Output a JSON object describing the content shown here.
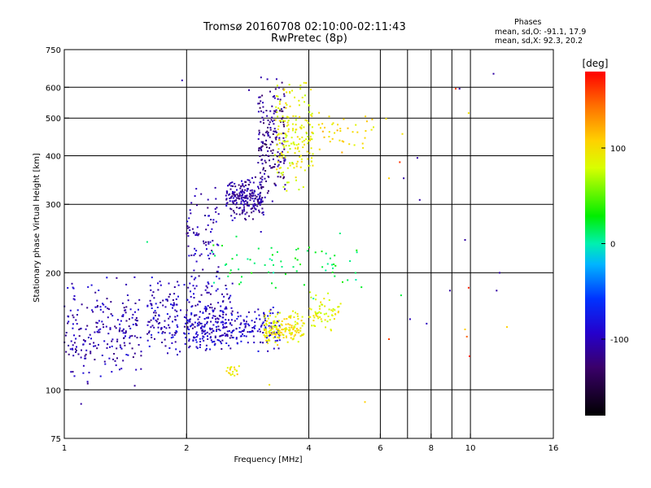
{
  "header": {
    "title_line1": "Tromsø 20160708 02:10:00-02:11:43",
    "title_line2": "RwPretec (8p)"
  },
  "phase_box": {
    "heading": "Phases",
    "line_o": "mean, sd,O: -91.1, 17.9",
    "line_x": "mean, sd,X:  92.3, 20.2"
  },
  "chart_data": {
    "type": "scatter",
    "xlabel": "Frequency [MHz]",
    "ylabel": "Stationary phase Virtual Height [km]",
    "x_scale": "log",
    "y_scale": "log",
    "xlim": [
      1,
      16
    ],
    "ylim": [
      75,
      750
    ],
    "x_ticks": [
      1,
      2,
      4,
      6,
      8,
      10,
      16
    ],
    "x_tick_labels": [
      "1",
      "2",
      "4",
      "6",
      "8",
      "10",
      "16"
    ],
    "x_gridlines": [
      2,
      4,
      6,
      7,
      8,
      9,
      10
    ],
    "y_ticks": [
      75,
      100,
      200,
      300,
      400,
      500,
      600,
      750
    ],
    "y_tick_labels": [
      "75",
      "100",
      "200",
      "300",
      "400",
      "500",
      "600",
      "750"
    ],
    "y_gridlines": [
      100,
      200,
      300,
      400,
      500,
      600
    ],
    "grid": true,
    "colorbar": {
      "label": "[deg]",
      "range": [
        -180,
        180
      ],
      "ticks": [
        100,
        0,
        -100
      ],
      "tick_labels": [
        "100",
        "0",
        "-100"
      ],
      "colormap": "rainbow (black-purple-blue-cyan-green-yellow-orange-red)"
    },
    "point_groups": [
      {
        "desc": "O-mode lower E/F1 trace",
        "x_range": [
          1.0,
          1.55
        ],
        "y_range": [
          100,
          200
        ],
        "phase": -105,
        "count": 220
      },
      {
        "desc": "O-mode F1 trace",
        "x_range": [
          1.6,
          2.6
        ],
        "y_range": [
          120,
          200
        ],
        "phase": -100,
        "count": 260
      },
      {
        "desc": "O-mode low loop",
        "x_range": [
          2.0,
          3.4
        ],
        "y_range": [
          125,
          165
        ],
        "phase": -95,
        "count": 220
      },
      {
        "desc": "O-mode F2 cluster",
        "x_range": [
          2.5,
          3.1
        ],
        "y_range": [
          270,
          360
        ],
        "phase": -110,
        "count": 220
      },
      {
        "desc": "O-mode F2 rise",
        "x_range": [
          3.0,
          3.5
        ],
        "y_range": [
          300,
          650
        ],
        "phase": -120,
        "count": 180
      },
      {
        "desc": "O-mode F vertical",
        "x_range": [
          2.0,
          2.4
        ],
        "y_range": [
          160,
          360
        ],
        "phase": -105,
        "count": 90
      },
      {
        "desc": "X-mode F2 trace",
        "x_range": [
          3.3,
          4.1
        ],
        "y_range": [
          320,
          640
        ],
        "phase": 90,
        "count": 180
      },
      {
        "desc": "X-mode low cluster",
        "x_range": [
          3.1,
          3.9
        ],
        "y_range": [
          130,
          160
        ],
        "phase": 95,
        "count": 160
      },
      {
        "desc": "X-mode tail",
        "x_range": [
          4.0,
          4.8
        ],
        "y_range": [
          140,
          180
        ],
        "phase": 90,
        "count": 60
      },
      {
        "desc": "X-mode small cluster",
        "x_range": [
          2.5,
          2.7
        ],
        "y_range": [
          107,
          116
        ],
        "phase": 100,
        "count": 18
      },
      {
        "desc": "X-mode sparse",
        "x_range": [
          4.2,
          5.8
        ],
        "y_range": [
          400,
          520
        ],
        "phase": 105,
        "count": 40
      },
      {
        "desc": "mixed scatter",
        "x_range": [
          2.2,
          5.5
        ],
        "y_range": [
          170,
          260
        ],
        "phase": 20,
        "count": 70
      }
    ],
    "isolated_points": [
      [
        1.1,
        92,
        -110
      ],
      [
        1.6,
        240,
        10
      ],
      [
        1.95,
        625,
        -105
      ],
      [
        2.85,
        590,
        -110
      ],
      [
        3.05,
        255,
        -100
      ],
      [
        6.2,
        498,
        100
      ],
      [
        6.3,
        135,
        160
      ],
      [
        6.3,
        350,
        110
      ],
      [
        6.7,
        385,
        165
      ],
      [
        6.75,
        175,
        20
      ],
      [
        6.8,
        455,
        100
      ],
      [
        6.85,
        350,
        -110
      ],
      [
        7.1,
        152,
        -100
      ],
      [
        7.4,
        395,
        -110
      ],
      [
        7.5,
        308,
        -110
      ],
      [
        7.8,
        148,
        -100
      ],
      [
        8.9,
        180,
        -110
      ],
      [
        9.2,
        595,
        160
      ],
      [
        9.4,
        595,
        -110
      ],
      [
        9.7,
        143,
        110
      ],
      [
        9.7,
        243,
        -110
      ],
      [
        9.8,
        137,
        150
      ],
      [
        9.9,
        183,
        170
      ],
      [
        9.95,
        122,
        170
      ],
      [
        9.9,
        515,
        100
      ],
      [
        11.6,
        180,
        -110
      ],
      [
        11.8,
        200,
        -110
      ],
      [
        11.4,
        650,
        -110
      ],
      [
        12.3,
        145,
        110
      ],
      [
        5.5,
        93,
        110
      ],
      [
        3.2,
        103,
        100
      ]
    ]
  }
}
